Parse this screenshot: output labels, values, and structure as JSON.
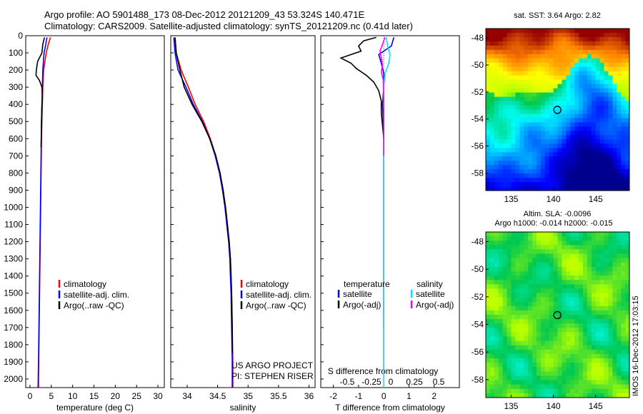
{
  "header": {
    "line1": "Argo profile: AO 5901488_173 08-Dec-2012 20121209_43 53.324S 140.471E",
    "line2": "Climatology: CARS2009. Satellite-adjusted climatology: synTS_20121209.nc (0.41d later)"
  },
  "colors": {
    "climatology": "#ff0000",
    "satellite": "#0000ff",
    "argo": "#000000",
    "sat_salinity": "#00e5ff",
    "argo_adj_salinity": "#ff00ff"
  },
  "chart_data": [
    {
      "type": "line",
      "id": "temperature",
      "xlabel": "temperature (deg C)",
      "xlim": [
        -1,
        31.5
      ],
      "ylim": [
        2050,
        0
      ],
      "xticks": [
        "0",
        "5",
        "10",
        "15",
        "20",
        "25",
        "30"
      ],
      "yticks": [
        "0",
        "100",
        "200",
        "300",
        "400",
        "500",
        "600",
        "700",
        "800",
        "900",
        "1000",
        "1100",
        "1200",
        "1300",
        "1400",
        "1500",
        "1600",
        "1700",
        "1800",
        "1900",
        "2000"
      ],
      "legend": [
        "climatology",
        "satellite-adj. clim.",
        "Argo(..raw -QC)"
      ],
      "series": [
        {
          "name": "climatology",
          "color": "#ff0000",
          "points": [
            [
              4.8,
              10
            ],
            [
              4.3,
              50
            ],
            [
              3.8,
              100
            ],
            [
              3.2,
              200
            ],
            [
              3.0,
              300
            ],
            [
              2.9,
              400
            ],
            [
              2.8,
              500
            ],
            [
              2.7,
              600
            ],
            [
              2.6,
              800
            ],
            [
              2.5,
              1000
            ],
            [
              2.4,
              1200
            ],
            [
              2.3,
              1400
            ],
            [
              2.2,
              1600
            ],
            [
              2.1,
              1800
            ],
            [
              2.0,
              2000
            ],
            [
              2.0,
              2050
            ]
          ]
        },
        {
          "name": "satellite-adj. clim.",
          "color": "#0000ff",
          "points": [
            [
              4.0,
              10
            ],
            [
              3.7,
              50
            ],
            [
              3.3,
              100
            ],
            [
              3.0,
              200
            ],
            [
              2.9,
              300
            ],
            [
              2.8,
              400
            ],
            [
              2.7,
              500
            ],
            [
              2.6,
              700
            ],
            [
              2.5,
              900
            ],
            [
              2.4,
              1100
            ],
            [
              2.3,
              1300
            ],
            [
              2.2,
              1500
            ],
            [
              2.1,
              1700
            ],
            [
              2.0,
              1900
            ],
            [
              1.9,
              2050
            ]
          ]
        },
        {
          "name": "Argo(..raw -QC)",
          "color": "#000000",
          "points": [
            [
              3.4,
              10
            ],
            [
              3.0,
              50
            ],
            [
              2.8,
              100
            ],
            [
              1.8,
              150
            ],
            [
              1.5,
              200
            ],
            [
              1.4,
              230
            ],
            [
              2.2,
              260
            ],
            [
              2.8,
              300
            ],
            [
              2.9,
              350
            ],
            [
              2.8,
              400
            ],
            [
              2.7,
              500
            ],
            [
              2.6,
              650
            ]
          ]
        }
      ]
    },
    {
      "type": "line",
      "id": "salinity",
      "xlabel": "salinity",
      "xlim": [
        33.73,
        36.1
      ],
      "ylim": [
        2050,
        0
      ],
      "xticks": [
        "34",
        "34.5",
        "35",
        "35.5",
        "36"
      ],
      "legend": [
        "climatology",
        "satellite-adj. clim.",
        "Argo(..raw -QC)"
      ],
      "series": [
        {
          "name": "climatology",
          "color": "#ff0000",
          "points": [
            [
              33.8,
              10
            ],
            [
              33.82,
              100
            ],
            [
              33.9,
              200
            ],
            [
              34.02,
              300
            ],
            [
              34.13,
              400
            ],
            [
              34.27,
              500
            ],
            [
              34.38,
              600
            ],
            [
              34.47,
              700
            ],
            [
              34.54,
              800
            ],
            [
              34.59,
              900
            ],
            [
              34.63,
              1000
            ],
            [
              34.66,
              1100
            ],
            [
              34.69,
              1200
            ],
            [
              34.71,
              1300
            ],
            [
              34.72,
              1400
            ],
            [
              34.73,
              1500
            ],
            [
              34.74,
              1700
            ],
            [
              34.75,
              1900
            ],
            [
              34.75,
              2050
            ]
          ]
        },
        {
          "name": "satellite-adj. clim.",
          "color": "#0000ff",
          "points": [
            [
              33.78,
              10
            ],
            [
              33.8,
              100
            ],
            [
              33.85,
              200
            ],
            [
              33.98,
              300
            ],
            [
              34.1,
              400
            ],
            [
              34.25,
              500
            ],
            [
              34.37,
              600
            ],
            [
              34.46,
              700
            ],
            [
              34.53,
              800
            ],
            [
              34.58,
              900
            ],
            [
              34.62,
              1000
            ],
            [
              34.65,
              1100
            ],
            [
              34.68,
              1200
            ],
            [
              34.7,
              1300
            ],
            [
              34.71,
              1400
            ],
            [
              34.72,
              1500
            ],
            [
              34.73,
              1700
            ],
            [
              34.74,
              1900
            ],
            [
              34.74,
              2050
            ]
          ]
        },
        {
          "name": "Argo(..raw -QC)",
          "color": "#000000",
          "points": [
            [
              33.8,
              10
            ],
            [
              33.82,
              100
            ],
            [
              33.88,
              200
            ],
            [
              33.95,
              300
            ],
            [
              34.08,
              400
            ],
            [
              34.24,
              500
            ],
            [
              34.37,
              600
            ],
            [
              34.47,
              700
            ],
            [
              34.54,
              800
            ],
            [
              34.59,
              900
            ],
            [
              34.63,
              1000
            ],
            [
              34.66,
              1100
            ],
            [
              34.69,
              1200
            ],
            [
              34.71,
              1300
            ],
            [
              34.72,
              1400
            ],
            [
              34.73,
              1500
            ],
            [
              34.74,
              1700
            ],
            [
              34.74,
              1850
            ]
          ]
        }
      ]
    },
    {
      "type": "line",
      "id": "differences",
      "xlabel": "T difference from climatology",
      "xlim_T": [
        -2.5,
        3.0
      ],
      "xticks_T": [
        "-2",
        "-1",
        "0",
        "1",
        "2"
      ],
      "s_axis_label": "S difference from climatology",
      "xticks_S": [
        "-0.5",
        "-0.25",
        "0",
        "0.25",
        "0.5"
      ],
      "ylim": [
        2050,
        0
      ],
      "legend_temperature_header": "temperature",
      "legend_salinity_header": "salinity",
      "legend": [
        "satellite",
        "Argo(-adj)",
        "satellite",
        "Argo(-adj)"
      ],
      "series": [
        {
          "name": "satellite",
          "color": "#0000ff",
          "points": [
            [
              0.4,
              10
            ],
            [
              0.3,
              60
            ],
            [
              -0.2,
              110
            ],
            [
              -0.1,
              160
            ],
            [
              0.0,
              220
            ],
            [
              0.0,
              300
            ],
            [
              -0.05,
              400
            ],
            [
              0.0,
              600
            ],
            [
              0.0,
              1000
            ],
            [
              0.0,
              1600
            ],
            [
              0.0,
              1950
            ]
          ]
        },
        {
          "name": "Argo(-adj)",
          "color": "#000000",
          "points": [
            [
              -0.3,
              10
            ],
            [
              -0.8,
              30
            ],
            [
              -1.0,
              60
            ],
            [
              -0.9,
              90
            ],
            [
              -1.7,
              130
            ],
            [
              -1.3,
              160
            ],
            [
              -1.1,
              190
            ],
            [
              -0.7,
              230
            ],
            [
              -0.4,
              270
            ],
            [
              -0.2,
              320
            ],
            [
              -0.1,
              380
            ],
            [
              -0.1,
              450
            ],
            [
              0.0,
              600
            ],
            [
              0.0,
              1000
            ],
            [
              0.0,
              1700
            ]
          ]
        },
        {
          "name": "satellite",
          "color": "#00e5ff",
          "points": [
            [
              0.1,
              10
            ],
            [
              0.15,
              60
            ],
            [
              0.25,
              110
            ],
            [
              0.2,
              160
            ],
            [
              0.05,
              220
            ],
            [
              0.0,
              300
            ],
            [
              0.0,
              500
            ],
            [
              0.0,
              1000
            ],
            [
              0.0,
              1500
            ],
            [
              0.0,
              2050
            ]
          ]
        },
        {
          "name": "Argo(-adj)",
          "color": "#ff00ff",
          "points": [
            [
              0.05,
              10
            ],
            [
              -0.05,
              50
            ],
            [
              -0.15,
              90
            ],
            [
              -0.1,
              130
            ],
            [
              -0.05,
              170
            ],
            [
              -0.1,
              210
            ],
            [
              -0.02,
              260
            ],
            [
              0.0,
              400
            ],
            [
              0.0,
              700
            ]
          ]
        }
      ]
    },
    {
      "type": "heatmap",
      "id": "sst-map",
      "title": "sat. SST: 3.64 Argo: 2.82",
      "xlim": [
        132,
        149
      ],
      "ylim": [
        -59.3,
        -47.3
      ],
      "xticks": [
        "135",
        "140",
        "145"
      ],
      "yticks": [
        "-48",
        "-50",
        "-52",
        "-54",
        "-56",
        "-58"
      ],
      "marker": {
        "lon": 140.471,
        "lat": -53.324
      }
    },
    {
      "type": "heatmap",
      "id": "sla-map",
      "title": "Altim. SLA: -0.0096",
      "subtitle": "Argo h1000: -0.014 h2000: -0.015",
      "xlim": [
        132,
        149
      ],
      "ylim": [
        -59.3,
        -47.3
      ],
      "xticks": [
        "135",
        "140",
        "145"
      ],
      "yticks": [
        "-48",
        "-50",
        "-52",
        "-54",
        "-56",
        "-58"
      ],
      "marker": {
        "lon": 140.471,
        "lat": -53.324
      }
    }
  ],
  "annotations": {
    "project": "US ARGO PROJECT",
    "pi": "PI: STEPHEN RISER",
    "stamp": "IMOS 16-Dec-2012 17:03:15"
  }
}
